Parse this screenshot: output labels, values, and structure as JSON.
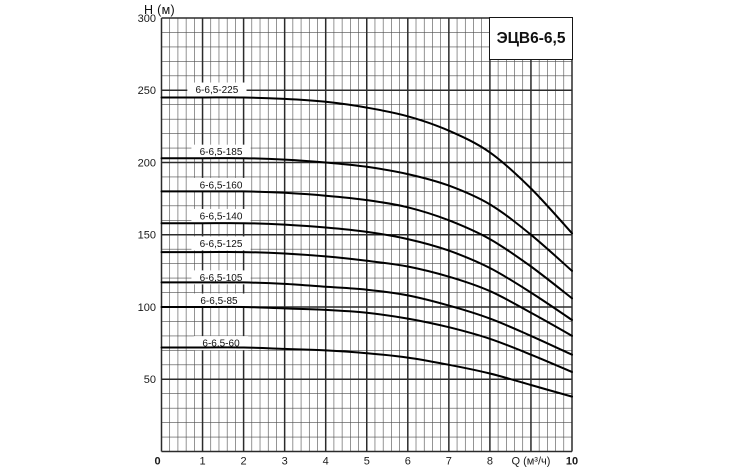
{
  "page": {
    "background": "#ffffff"
  },
  "chart_data": {
    "type": "line",
    "title": "ЭЦВ6-6,5",
    "xlabel": "Q (м³/ч)",
    "ylabel": "H (м)",
    "xlim": [
      0,
      10
    ],
    "ylim": [
      0,
      300
    ],
    "grid": true,
    "x_minor_step": 0.2,
    "x_major_step": 1,
    "y_minor_step": 10,
    "y_major_step": 50,
    "line_color": "#000000",
    "text_color": "#1a1a1a",
    "x_ticks": [
      {
        "label": "0",
        "bold": true
      },
      {
        "label": "1"
      },
      {
        "label": "2"
      },
      {
        "label": "3"
      },
      {
        "label": "4"
      },
      {
        "label": "5"
      },
      {
        "label": "6"
      },
      {
        "label": "7"
      },
      {
        "label": "8"
      },
      {
        "label": "Q (м³/ч)"
      },
      {
        "label": "10",
        "bold": true
      }
    ],
    "y_ticks": [
      {
        "value": 300,
        "label": "300"
      },
      {
        "value": 250,
        "label": "250"
      },
      {
        "value": 200,
        "label": "200"
      },
      {
        "value": 150,
        "label": "150"
      },
      {
        "value": 100,
        "label": "100"
      },
      {
        "value": 50,
        "label": "50"
      }
    ],
    "x": [
      0,
      1,
      2,
      3,
      4,
      5,
      6,
      7,
      8,
      9,
      10
    ],
    "series": [
      {
        "name": "6-6,5-225",
        "values": [
          245,
          245,
          245,
          244,
          242,
          238,
          232,
          222,
          207,
          182,
          151
        ],
        "label_q": 1.35,
        "label_h": 250.5
      },
      {
        "name": "6-6,5-185",
        "values": [
          203,
          203,
          203,
          202,
          200,
          197,
          192,
          184,
          171,
          150,
          125
        ],
        "label_q": 1.45,
        "label_h": 207.5
      },
      {
        "name": "6-6,5-160",
        "values": [
          180,
          180,
          180,
          179,
          177,
          174,
          169,
          160,
          147,
          128,
          106
        ],
        "label_q": 1.45,
        "label_h": 184.5
      },
      {
        "name": "6-6,5-140",
        "values": [
          158,
          158,
          158,
          157,
          155,
          152,
          147,
          139,
          127,
          110,
          91
        ],
        "label_q": 1.45,
        "label_h": 163
      },
      {
        "name": "6-6,5-125",
        "values": [
          138,
          138,
          138,
          137,
          135,
          132,
          128,
          121,
          111,
          96,
          80
        ],
        "label_q": 1.45,
        "label_h": 144
      },
      {
        "name": "6-6,5-105",
        "values": [
          117,
          117,
          117,
          116,
          114,
          112,
          108,
          101,
          92,
          80,
          67
        ],
        "label_q": 1.45,
        "label_h": 120.5
      },
      {
        "name": "6-6,5-85",
        "values": [
          100,
          100,
          100,
          99,
          98,
          96,
          92,
          86,
          78,
          67,
          55
        ],
        "label_q": 1.4,
        "label_h": 104.5
      },
      {
        "name": "6-6,5-60",
        "values": [
          72,
          72,
          72,
          71,
          70,
          68,
          65,
          60,
          54,
          46,
          38
        ],
        "label_q": 1.45,
        "label_h": 75
      }
    ]
  }
}
